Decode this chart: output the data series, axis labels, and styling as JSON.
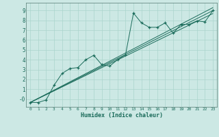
{
  "xlabel": "Humidex (Indice chaleur)",
  "bg_color": "#cce8e4",
  "line_color": "#1a6b5a",
  "grid_color": "#aad4cc",
  "xlim": [
    -0.5,
    23.5
  ],
  "ylim": [
    -0.8,
    9.8
  ],
  "xticks": [
    0,
    1,
    2,
    3,
    4,
    5,
    6,
    7,
    8,
    9,
    10,
    11,
    12,
    13,
    14,
    15,
    16,
    17,
    18,
    19,
    20,
    21,
    22,
    23
  ],
  "yticks": [
    0,
    1,
    2,
    3,
    4,
    5,
    6,
    7,
    8,
    9
  ],
  "ytick_labels": [
    "-0",
    "1",
    "2",
    "3",
    "4",
    "5",
    "6",
    "7",
    "8",
    "9"
  ],
  "scatter_x": [
    0,
    1,
    2,
    3,
    4,
    5,
    6,
    7,
    8,
    9,
    10,
    11,
    12,
    13,
    14,
    15,
    16,
    17,
    18,
    19,
    20,
    21,
    22,
    23
  ],
  "scatter_y": [
    -0.35,
    -0.35,
    -0.1,
    1.4,
    2.6,
    3.1,
    3.2,
    4.0,
    4.45,
    3.5,
    3.35,
    4.0,
    4.5,
    8.75,
    7.75,
    7.3,
    7.3,
    7.75,
    6.7,
    7.6,
    7.6,
    7.95,
    7.85,
    9.0
  ],
  "line1_x": [
    0,
    23
  ],
  "line1_y": [
    -0.35,
    9.0
  ],
  "line2_x": [
    0,
    23
  ],
  "line2_y": [
    -0.35,
    8.7
  ],
  "line3_x": [
    0,
    23
  ],
  "line3_y": [
    -0.35,
    9.3
  ]
}
